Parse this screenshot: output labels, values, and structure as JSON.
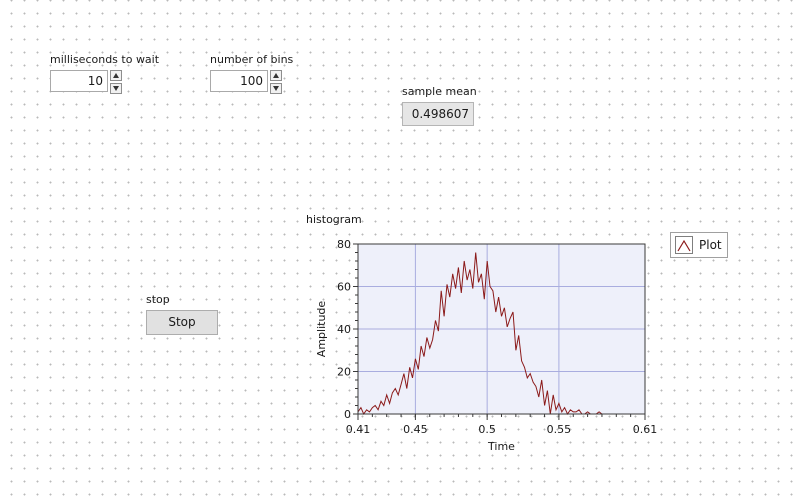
{
  "controls": {
    "ms_wait": {
      "label": "milliseconds to wait",
      "value": "10"
    },
    "num_bins": {
      "label": "number of bins",
      "value": "100"
    }
  },
  "indicator": {
    "label": "sample mean",
    "value": "0.498607"
  },
  "stop": {
    "label": "stop",
    "button": "Stop"
  },
  "legend": {
    "label": "Plot"
  },
  "chart_label": "histogram",
  "chart_data": {
    "type": "line",
    "xlabel": "Time",
    "ylabel": "Amplitude",
    "xlim": [
      0.41,
      0.61
    ],
    "ylim": [
      0,
      80
    ],
    "x_ticks": [
      "0.41",
      "0.45",
      "0.5",
      "0.55",
      "0.61"
    ],
    "x_tick_values": [
      0.41,
      0.45,
      0.5,
      0.55,
      0.61
    ],
    "y_ticks": [
      "0",
      "20",
      "40",
      "60",
      "80"
    ],
    "y_tick_values": [
      0,
      20,
      40,
      60,
      80
    ],
    "grid": true,
    "color": "#8b1a1a",
    "series": [
      {
        "x": [
          0.41,
          0.412,
          0.414,
          0.416,
          0.418,
          0.42,
          0.422,
          0.424,
          0.426,
          0.428,
          0.43,
          0.432,
          0.434,
          0.436,
          0.438,
          0.44,
          0.442,
          0.444,
          0.446,
          0.448,
          0.45,
          0.452,
          0.454,
          0.456,
          0.458,
          0.46,
          0.462,
          0.464,
          0.466,
          0.468,
          0.47,
          0.472,
          0.474,
          0.476,
          0.478,
          0.48,
          0.482,
          0.484,
          0.486,
          0.488,
          0.49,
          0.492,
          0.494,
          0.496,
          0.498,
          0.5,
          0.502,
          0.504,
          0.506,
          0.508,
          0.51,
          0.512,
          0.514,
          0.516,
          0.518,
          0.52,
          0.522,
          0.524,
          0.526,
          0.528,
          0.53,
          0.532,
          0.534,
          0.536,
          0.538,
          0.54,
          0.542,
          0.544,
          0.546,
          0.548,
          0.55,
          0.552,
          0.554,
          0.556,
          0.558,
          0.56,
          0.562,
          0.564,
          0.566,
          0.568,
          0.57,
          0.572,
          0.574,
          0.576,
          0.578,
          0.58,
          0.582,
          0.584,
          0.586,
          0.588,
          0.59,
          0.592,
          0.594,
          0.596,
          0.598,
          0.6
        ],
        "y": [
          1,
          3,
          0,
          2,
          1,
          3,
          4,
          2,
          6,
          4,
          9,
          5,
          10,
          12,
          9,
          14,
          19,
          12,
          22,
          17,
          26,
          21,
          32,
          27,
          36,
          31,
          35,
          44,
          39,
          58,
          46,
          61,
          55,
          66,
          59,
          69,
          57,
          72,
          63,
          68,
          59,
          76,
          62,
          66,
          54,
          72,
          60,
          58,
          48,
          55,
          46,
          50,
          41,
          45,
          48,
          30,
          37,
          25,
          22,
          17,
          19,
          15,
          13,
          8,
          16,
          4,
          11,
          0,
          9,
          2,
          5,
          1,
          3,
          0,
          2,
          1,
          1,
          2,
          0,
          0,
          1,
          0,
          0,
          0,
          1,
          0,
          0,
          0,
          0,
          0,
          0,
          0,
          0,
          0,
          0,
          0
        ]
      }
    ]
  }
}
